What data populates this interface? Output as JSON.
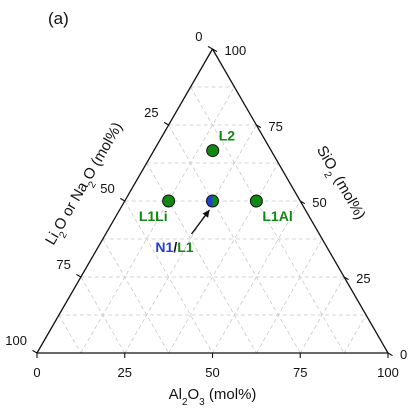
{
  "chart_data": {
    "type": "scatter",
    "subtype": "ternary",
    "panel_label": "(a)",
    "axes": {
      "bottom": {
        "label_parts": [
          "Al",
          "2",
          "O",
          "3",
          " (mol%)"
        ],
        "ticks": [
          "0",
          "25",
          "50",
          "75",
          "100"
        ],
        "range": [
          0,
          100
        ]
      },
      "right": {
        "label_parts": [
          "SiO",
          "2",
          " (mol%)"
        ],
        "ticks": [
          "0",
          "25",
          "50",
          "75",
          "100"
        ],
        "range": [
          0,
          100
        ]
      },
      "left": {
        "label_parts": [
          "Li",
          "2",
          "O or Na",
          "2",
          "O (mol%)"
        ],
        "ticks": [
          "0",
          "25",
          "50",
          "75",
          "100"
        ],
        "range": [
          0,
          100
        ]
      }
    },
    "grid": true,
    "grid_step": 12.5,
    "points": [
      {
        "name": "L2",
        "al2o3": 16.7,
        "sio2": 66.7,
        "r2o": 16.7,
        "color": "#118811",
        "label_side": "right"
      },
      {
        "name": "L1Li",
        "al2o3": 12.5,
        "sio2": 50.0,
        "r2o": 37.5,
        "color": "#118811",
        "label_side": "below-left"
      },
      {
        "name": "L1Al",
        "al2o3": 37.5,
        "sio2": 50.0,
        "r2o": 12.5,
        "color": "#118811",
        "label_side": "below-right"
      },
      {
        "name": "N1/L1",
        "al2o3": 25.0,
        "sio2": 50.0,
        "r2o": 25.0,
        "split": true,
        "colors": [
          "#1f3fd6",
          "#118811"
        ]
      }
    ],
    "annotation": {
      "parts": [
        {
          "text": "N1",
          "color": "#1f3fd6"
        },
        {
          "text": "/",
          "color": "#111111"
        },
        {
          "text": "L1",
          "color": "#118811"
        }
      ],
      "arrow_to": "N1/L1"
    }
  }
}
